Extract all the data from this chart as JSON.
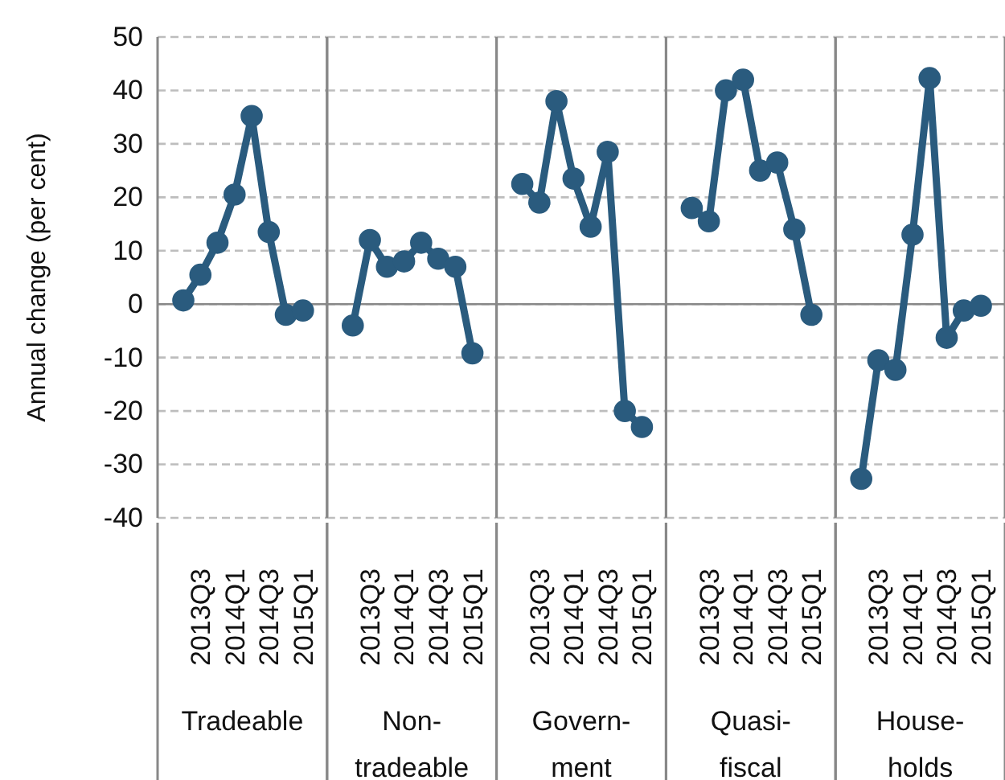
{
  "chart_data": [
    {
      "type": "line",
      "xlabel": "Tradeable",
      "ylabel": "Annual change (per cent)",
      "categories": [
        null,
        "2013Q3",
        null,
        "2014Q1",
        null,
        "2014Q3",
        null,
        "2015Q1"
      ],
      "series": [
        {
          "color": "#2a5b7e",
          "values": [
            0.7,
            5.5,
            11.5,
            20.5,
            35.2,
            13.5,
            -2,
            -1.2
          ]
        }
      ],
      "ylim": [
        -40,
        50
      ],
      "yticks": [
        -40,
        -30,
        -20,
        -10,
        0,
        10,
        20,
        30,
        40,
        50
      ],
      "grid": "y",
      "marker": "circle",
      "line_style": "solid",
      "ref_lines": [
        {
          "axis": "y",
          "value": 0,
          "color": "#888888"
        }
      ]
    },
    {
      "type": "line",
      "xlabel": "Non-\ntradeable",
      "categories": [
        null,
        "2013Q3",
        null,
        "2014Q1",
        null,
        "2014Q3",
        null,
        "2015Q1"
      ],
      "series": [
        {
          "color": "#2a5b7e",
          "values": [
            -4,
            12,
            7,
            8,
            11.5,
            8.5,
            7,
            -9.2
          ]
        }
      ],
      "ylim": [
        -40,
        50
      ],
      "yticks": [
        -40,
        -30,
        -20,
        -10,
        0,
        10,
        20,
        30,
        40,
        50
      ],
      "ref_lines": [
        {
          "axis": "y",
          "value": 0,
          "color": "#888888"
        }
      ],
      "grid": "y",
      "marker": "circle",
      "line_style": "solid",
      "tick_labels": "x"
    },
    {
      "type": "line",
      "xlabel": "Govern-\nment",
      "categories": [
        null,
        "2013Q3",
        null,
        "2014Q1",
        null,
        "2014Q3",
        null,
        "2015Q1"
      ],
      "series": [
        {
          "color": "#2a5b7e",
          "values": [
            22.5,
            19,
            38,
            23.5,
            14.5,
            28.5,
            -20,
            -23
          ]
        }
      ],
      "ylim": [
        -40,
        50
      ],
      "yticks": [
        -40,
        -30,
        -20,
        -10,
        0,
        10,
        20,
        30,
        40,
        50
      ],
      "ref_lines": [
        {
          "axis": "y",
          "value": 0,
          "color": "#888888"
        }
      ],
      "grid": "y",
      "marker": "circle",
      "line_style": "solid",
      "tick_labels": "x"
    },
    {
      "type": "line",
      "xlabel": "Quasi-\nfiscal",
      "categories": [
        null,
        "2013Q3",
        null,
        "2014Q1",
        null,
        "2014Q3",
        null,
        "2015Q1"
      ],
      "series": [
        {
          "color": "#2a5b7e",
          "values": [
            18,
            15.5,
            40,
            42,
            25,
            26.5,
            14,
            -2
          ]
        }
      ],
      "ylim": [
        -40,
        50
      ],
      "yticks": [
        -40,
        -30,
        -20,
        -10,
        0,
        10,
        20,
        30,
        40,
        50
      ],
      "ref_lines": [
        {
          "axis": "y",
          "value": 0,
          "color": "#888888"
        }
      ],
      "grid": "y",
      "marker": "circle",
      "line_style": "solid",
      "tick_labels": "x"
    },
    {
      "type": "line",
      "xlabel": "House-\nholds",
      "categories": [
        null,
        "2013Q3",
        null,
        "2014Q1",
        null,
        "2014Q3",
        null,
        "2015Q1"
      ],
      "series": [
        {
          "color": "#2a5b7e",
          "values": [
            -32.7,
            -10.5,
            -12.3,
            13,
            42.3,
            -6.3,
            -1.2,
            -0.3
          ]
        }
      ],
      "ylim": [
        -40,
        50
      ],
      "yticks": [
        -40,
        -30,
        -20,
        -10,
        0,
        10,
        20,
        30,
        40,
        50
      ],
      "ref_lines": [
        {
          "axis": "y",
          "value": 0,
          "color": "#888888"
        }
      ],
      "grid": "y",
      "marker": "circle",
      "line_style": "solid",
      "tick_labels": "x"
    }
  ]
}
